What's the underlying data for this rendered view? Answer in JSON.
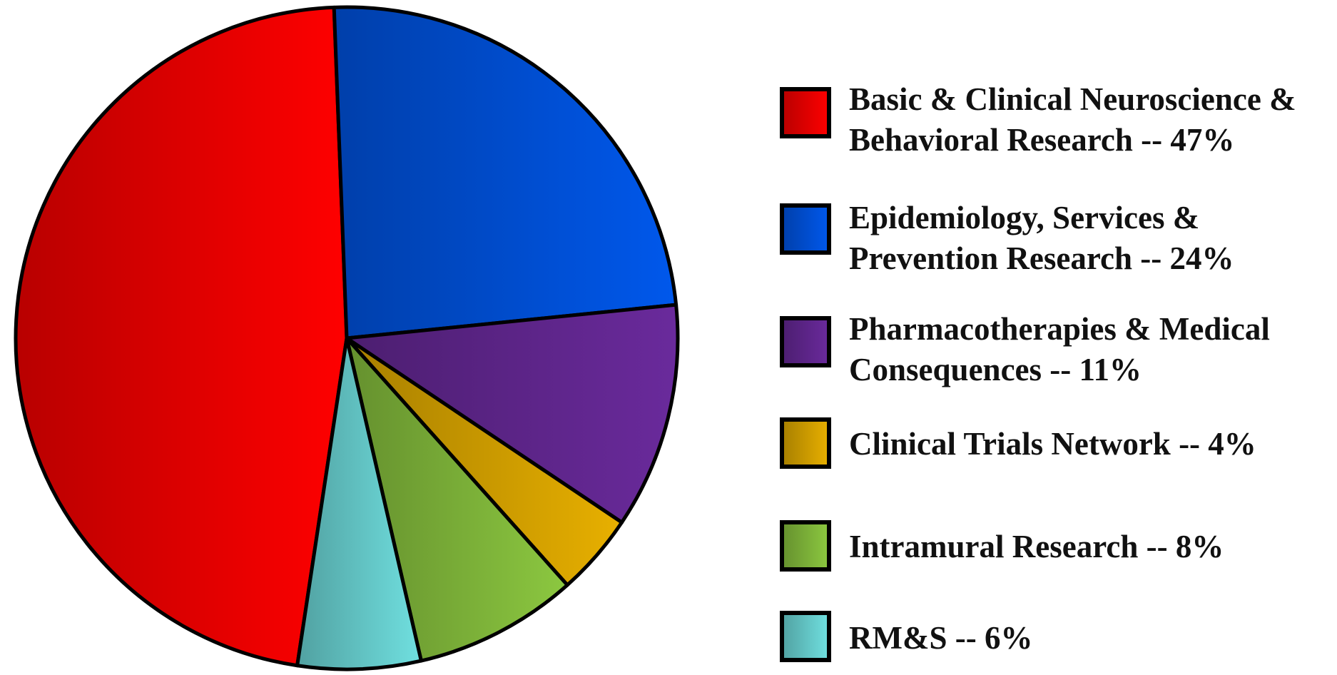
{
  "chart_data": {
    "type": "pie",
    "categories": [
      "Basic & Clinical Neuroscience & Behavioral Research -- 47%",
      "Epidemiology, Services & Prevention Research -- 24%",
      "Pharmacotherapies & Medical Consequences -- 11%",
      "Clinical Trials Network -- 4%",
      "Intramural Research -- 8%",
      "RM&S -- 6%"
    ],
    "values": [
      47,
      24,
      11,
      4,
      8,
      6
    ],
    "colors": [
      "#ff0000",
      "#0058ec",
      "#6a2a9c",
      "#e8b000",
      "#8cc840",
      "#70e0e0"
    ],
    "legend": "right"
  }
}
